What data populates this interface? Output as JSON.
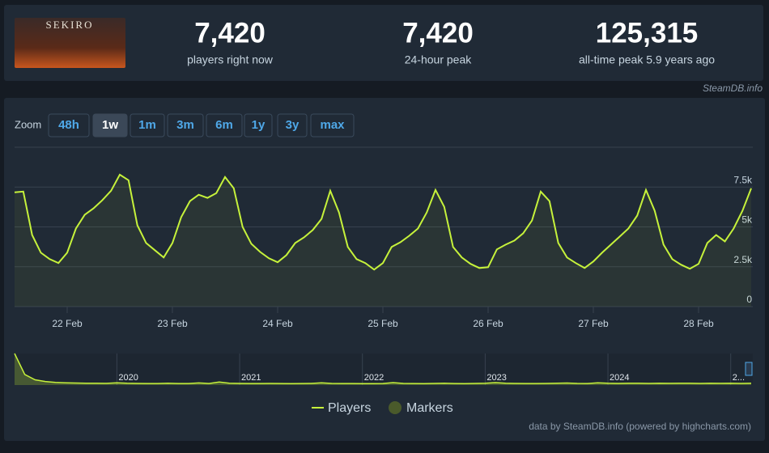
{
  "header": {
    "image_text": "SEKIRO",
    "stats": [
      {
        "value": "7,420",
        "label": "players right now"
      },
      {
        "value": "7,420",
        "label": "24-hour peak"
      },
      {
        "value": "125,315",
        "label": "all-time peak 5.9 years ago"
      }
    ],
    "source": "SteamDB.info"
  },
  "zoom": {
    "label": "Zoom",
    "options": [
      "48h",
      "1w",
      "1m",
      "3m",
      "6m",
      "1y",
      "3y",
      "max"
    ],
    "active_index": 1
  },
  "chart_data": [
    {
      "type": "line",
      "categories": [
        null,
        null,
        null,
        null,
        null,
        null,
        "22 Feb",
        null,
        null,
        null,
        null,
        null,
        null,
        null,
        null,
        null,
        null,
        null,
        "23 Feb",
        null,
        null,
        null,
        null,
        null,
        null,
        null,
        null,
        null,
        null,
        null,
        "24 Feb",
        null,
        null,
        null,
        null,
        null,
        null,
        null,
        null,
        null,
        null,
        null,
        "25 Feb",
        null,
        null,
        null,
        null,
        null,
        null,
        null,
        null,
        null,
        null,
        null,
        "26 Feb",
        null,
        null,
        null,
        null,
        null,
        null,
        null,
        null,
        null,
        null,
        null,
        "27 Feb",
        null,
        null,
        null,
        null,
        null,
        null,
        null,
        null,
        null,
        null,
        null,
        "28 Feb",
        null,
        null,
        null,
        null,
        null,
        null
      ],
      "series": [
        {
          "name": "Players",
          "color": "#c6f23b",
          "values": [
            7170,
            7220,
            4490,
            3380,
            2980,
            2730,
            3380,
            4900,
            5760,
            6160,
            6670,
            7270,
            8280,
            7930,
            5100,
            3990,
            3540,
            3080,
            3990,
            5610,
            6620,
            7020,
            6820,
            7120,
            8130,
            7420,
            5000,
            3940,
            3430,
            3030,
            2780,
            3230,
            3990,
            4340,
            4800,
            5500,
            7270,
            5910,
            3740,
            2980,
            2730,
            2320,
            2730,
            3740,
            4040,
            4440,
            4900,
            5910,
            7320,
            6260,
            3740,
            3080,
            2680,
            2420,
            2470,
            3590,
            3890,
            4140,
            4600,
            5400,
            7220,
            6620,
            3990,
            3080,
            2730,
            2420,
            2830,
            3380,
            3890,
            4390,
            4900,
            5710,
            7320,
            6010,
            3890,
            2980,
            2630,
            2370,
            2680,
            3990,
            4490,
            4090,
            4900,
            6010,
            7420
          ]
        }
      ],
      "ylim": [
        0,
        10000
      ],
      "yticks": [
        0,
        {
          "value": 2500,
          "label": "2.5k"
        },
        {
          "value": 5000,
          "label": "5k"
        },
        {
          "value": 7500,
          "label": "7.5k"
        }
      ],
      "grid": true,
      "legend_extra": {
        "name": "Markers",
        "color": "#4a5a2b"
      }
    },
    {
      "type": "area",
      "categories": [
        null,
        null,
        null,
        null,
        null,
        null,
        null,
        null,
        null,
        null,
        "2020",
        null,
        null,
        null,
        null,
        null,
        null,
        null,
        null,
        null,
        null,
        null,
        "2021",
        null,
        null,
        null,
        null,
        null,
        null,
        null,
        null,
        null,
        null,
        null,
        "2022",
        null,
        null,
        null,
        null,
        null,
        null,
        null,
        null,
        null,
        null,
        null,
        "2023",
        null,
        null,
        null,
        null,
        null,
        null,
        null,
        null,
        null,
        null,
        null,
        "2024",
        null,
        null,
        null,
        null,
        null,
        null,
        null,
        null,
        null,
        null,
        null,
        "2...",
        null,
        null
      ],
      "values": [
        125315,
        42000,
        21000,
        14000,
        10500,
        9000,
        8000,
        7500,
        7000,
        6800,
        9000,
        7000,
        6500,
        6200,
        6000,
        7500,
        6200,
        6000,
        8500,
        6000,
        12000,
        7500,
        6500,
        6000,
        6200,
        6500,
        6000,
        5800,
        6000,
        6500,
        9000,
        6500,
        6000,
        6200,
        5800,
        5500,
        6000,
        9500,
        6500,
        6000,
        5800,
        6500,
        7000,
        6000,
        5800,
        6500,
        7500,
        9500,
        7000,
        6500,
        6200,
        6000,
        6500,
        7000,
        8000,
        6500,
        6000,
        9000,
        7000,
        6500,
        7500,
        7000,
        6500,
        7000,
        6800,
        7500,
        7000,
        6500,
        7200,
        6800,
        7500,
        6500,
        7420
      ],
      "color": "#c6f23b"
    }
  ],
  "credit": "data by SteamDB.info (powered by highcharts.com)"
}
